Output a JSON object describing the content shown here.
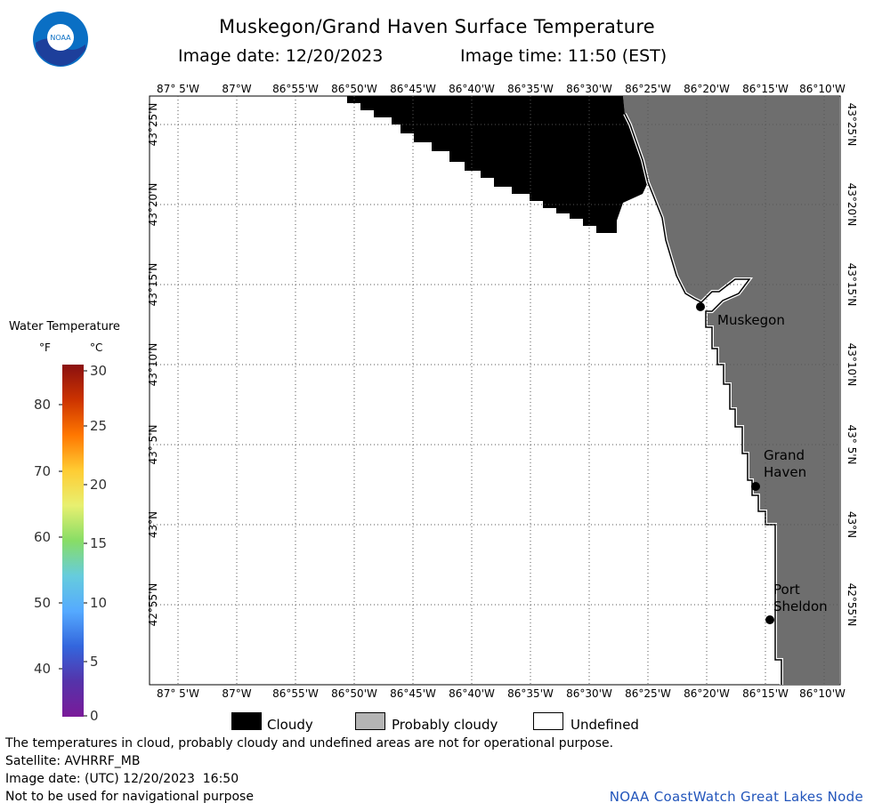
{
  "header": {
    "title": "Muskegon/Grand Haven Surface Temperature",
    "image_date": "Image date: 12/20/2023",
    "image_time": "Image time: 11:50 (EST)"
  },
  "logo": {
    "text": "NOAA",
    "icon": "noaa-logo-icon"
  },
  "map": {
    "lon_labels": [
      "87° 5'W",
      "87°W",
      "86°55'W",
      "86°50'W",
      "86°45'W",
      "86°40'W",
      "86°35'W",
      "86°30'W",
      "86°25'W",
      "86°20'W",
      "86°15'W",
      "86°10'W"
    ],
    "lat_labels": [
      "43°25'N",
      "43°20'N",
      "43°15'N",
      "43°10'N",
      "43° 5'N",
      "43°N",
      "42°55'N"
    ],
    "cities": [
      {
        "name": "Muskegon",
        "lines": [
          "Muskegon"
        ]
      },
      {
        "name": "Grand Haven",
        "lines": [
          "Grand",
          "Haven"
        ]
      },
      {
        "name": "Port Sheldon",
        "lines": [
          "Port",
          "Sheldon"
        ]
      }
    ],
    "colors": {
      "cloudy": "#000000",
      "probably_cloudy": "#6e6e6e",
      "undefined": "#ffffff",
      "grid": "#555555"
    }
  },
  "legend": {
    "title": "Water Temperature",
    "unit_f": "°F",
    "unit_c": "°C",
    "f_ticks": [
      "80",
      "70",
      "60",
      "50",
      "40"
    ],
    "c_ticks": [
      "30",
      "25",
      "20",
      "15",
      "10",
      "5",
      "0"
    ],
    "gradient": [
      "#8a1010",
      "#cc3300",
      "#ff7700",
      "#ffcc33",
      "#e8f070",
      "#88dd66",
      "#66ccdd",
      "#55aaff",
      "#3366dd",
      "#5533aa",
      "#7a1a99"
    ]
  },
  "key": {
    "cloudy": "Cloudy",
    "probably_cloudy": "Probably cloudy",
    "undefined": "Undefined",
    "probably_cloudy_swatch": "#b4b4b4"
  },
  "notes": {
    "line1": "The temperatures in cloud, probably cloudy and undefined areas are not for operational purpose.",
    "line2": "Satellite: AVHRRF_MB",
    "line3": "Image date: (UTC) 12/20/2023  16:50",
    "line4": "Not to be used for navigational purpose",
    "credit": "NOAA CoastWatch Great Lakes Node"
  }
}
